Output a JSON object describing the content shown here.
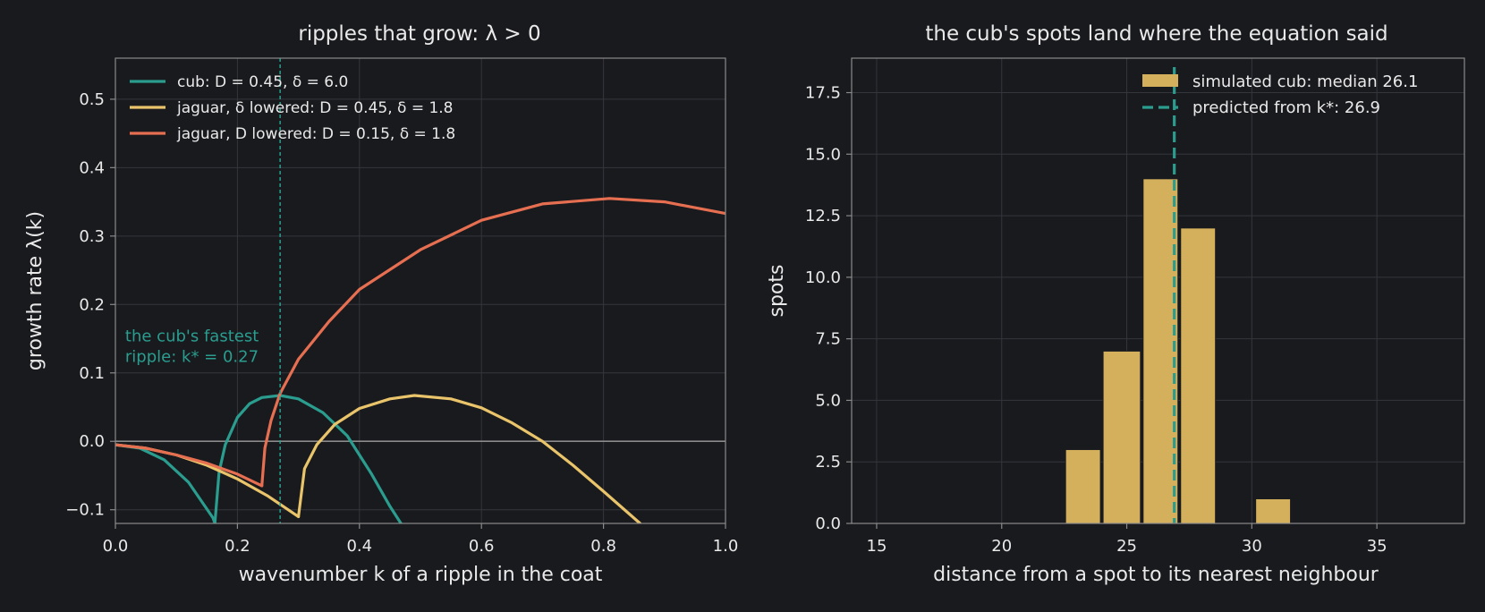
{
  "theme": {
    "background": "#191a1e",
    "text": "#e9e9e9",
    "spine": "#8a8a8a",
    "grid": "#34363c",
    "zero_line": "#8a8a8a"
  },
  "chart_data": [
    {
      "type": "line",
      "title": "ripples that grow: λ > 0",
      "xlabel": "wavenumber k of a ripple in the coat",
      "ylabel": "growth rate λ(k)",
      "xlim": [
        0.0,
        1.0
      ],
      "ylim": [
        -0.12,
        0.56
      ],
      "xticks": [
        0.0,
        0.2,
        0.4,
        0.6,
        0.8,
        1.0
      ],
      "xtick_labels": [
        "0.0",
        "0.2",
        "0.4",
        "0.6",
        "0.8",
        "1.0"
      ],
      "yticks": [
        -0.1,
        0.0,
        0.1,
        0.2,
        0.3,
        0.4,
        0.5
      ],
      "ytick_labels": [
        "−0.1",
        "0.0",
        "0.1",
        "0.2",
        "0.3",
        "0.4",
        "0.5"
      ],
      "grid": true,
      "legend_position": "top-left",
      "series": [
        {
          "name": "cub: D = 0.45, δ = 6.0",
          "color": "#2a9d8f",
          "x": [
            0.0,
            0.04,
            0.08,
            0.12,
            0.16,
            0.163
          ],
          "y": [
            -0.005,
            -0.01,
            -0.027,
            -0.06,
            -0.112,
            -0.12
          ],
          "x2": [
            0.163,
            0.17,
            0.18,
            0.2,
            0.22,
            0.24,
            0.27,
            0.3,
            0.34,
            0.38,
            0.42,
            0.45,
            0.468
          ],
          "y2": [
            -0.12,
            -0.045,
            -0.005,
            0.035,
            0.055,
            0.064,
            0.067,
            0.062,
            0.042,
            0.008,
            -0.048,
            -0.095,
            -0.12
          ]
        },
        {
          "name": "jaguar, δ lowered: D = 0.45, δ = 1.8",
          "color": "#e9c46a",
          "x": [
            0.0,
            0.05,
            0.1,
            0.15,
            0.2,
            0.25,
            0.3
          ],
          "y": [
            -0.005,
            -0.01,
            -0.02,
            -0.035,
            -0.055,
            -0.08,
            -0.11
          ],
          "x2": [
            0.3,
            0.31,
            0.33,
            0.36,
            0.4,
            0.45,
            0.49,
            0.55,
            0.6,
            0.65,
            0.7,
            0.75,
            0.8,
            0.86
          ],
          "y2": [
            -0.11,
            -0.04,
            -0.005,
            0.025,
            0.048,
            0.062,
            0.067,
            0.062,
            0.049,
            0.027,
            0.0,
            -0.035,
            -0.073,
            -0.12
          ]
        },
        {
          "name": "jaguar, D lowered: D = 0.15, δ = 1.8",
          "color": "#e76f51",
          "x": [
            0.0,
            0.05,
            0.1,
            0.15,
            0.2,
            0.24
          ],
          "y": [
            -0.005,
            -0.01,
            -0.02,
            -0.032,
            -0.048,
            -0.065
          ],
          "x2": [
            0.24,
            0.245,
            0.255,
            0.27,
            0.3,
            0.35,
            0.4,
            0.5,
            0.6,
            0.7,
            0.81,
            0.9,
            1.0
          ],
          "y2": [
            -0.065,
            -0.01,
            0.03,
            0.07,
            0.12,
            0.175,
            0.222,
            0.28,
            0.323,
            0.347,
            0.355,
            0.35,
            0.333
          ]
        }
      ],
      "vline": {
        "x": 0.27,
        "color": "#2a9d8f"
      },
      "annotation": {
        "lines": [
          "the cub's fastest",
          "ripple: k* = 0.27"
        ],
        "x": 0.016,
        "y": 0.155,
        "color": "#2a9d8f"
      }
    },
    {
      "type": "bar",
      "title": "the cub's spots land where the equation said",
      "xlabel": "distance from a spot to its nearest neighbour",
      "ylabel": "spots",
      "xlim": [
        14.0,
        38.5
      ],
      "ylim": [
        0,
        18.9
      ],
      "xticks": [
        15,
        20,
        25,
        30,
        35
      ],
      "xtick_labels": [
        "15",
        "20",
        "25",
        "30",
        "35"
      ],
      "yticks": [
        0.0,
        2.5,
        5.0,
        7.5,
        10.0,
        12.5,
        15.0,
        17.5
      ],
      "ytick_labels": [
        "0.0",
        "2.5",
        "5.0",
        "7.5",
        "10.0",
        "12.5",
        "15.0",
        "17.5"
      ],
      "grid": true,
      "legend_position": "top-right",
      "bars": {
        "name": "simulated cub: median 26.1",
        "color": "#d4b05c",
        "bin_edges": [
          22.5,
          24.0,
          25.6,
          27.1,
          28.6,
          30.1,
          31.6
        ],
        "counts": [
          3,
          7,
          14,
          12,
          0,
          1
        ]
      },
      "vline": {
        "name": "predicted from k*: 26.9",
        "x": 26.9,
        "color": "#2a9d8f"
      }
    }
  ]
}
